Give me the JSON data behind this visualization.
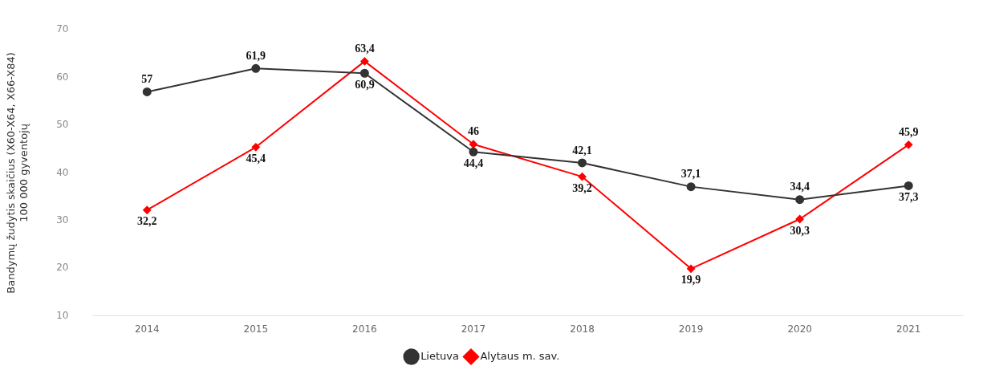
{
  "chart_data": {
    "type": "line",
    "ylabel": "Bandymų žudytis skaičius (X60-X64, X66-X84) 100 000 gyventojų",
    "categories": [
      "2014",
      "2015",
      "2016",
      "2017",
      "2018",
      "2019",
      "2020",
      "2021"
    ],
    "ylim": [
      10,
      70
    ],
    "yticks": [
      10,
      20,
      30,
      40,
      50,
      60,
      70
    ],
    "grid": false,
    "legend": "bottom",
    "series": [
      {
        "name": "Lietuva",
        "color": "#333333",
        "marker": "circle",
        "values": [
          57,
          61.9,
          60.9,
          44.4,
          42.1,
          37.1,
          34.4,
          37.3
        ],
        "value_labels": [
          "57",
          "61,9",
          "60,9",
          "44,4",
          "42,1",
          "37,1",
          "34,4",
          "37,3"
        ]
      },
      {
        "name": "Alytaus m. sav.",
        "color": "#ff0000",
        "marker": "diamond",
        "values": [
          32.2,
          45.4,
          63.4,
          46,
          39.2,
          19.9,
          30.3,
          45.9
        ],
        "value_labels": [
          "32,2",
          "45,4",
          "63,4",
          "46",
          "39,2",
          "19,9",
          "30,3",
          "45,9"
        ]
      }
    ]
  }
}
